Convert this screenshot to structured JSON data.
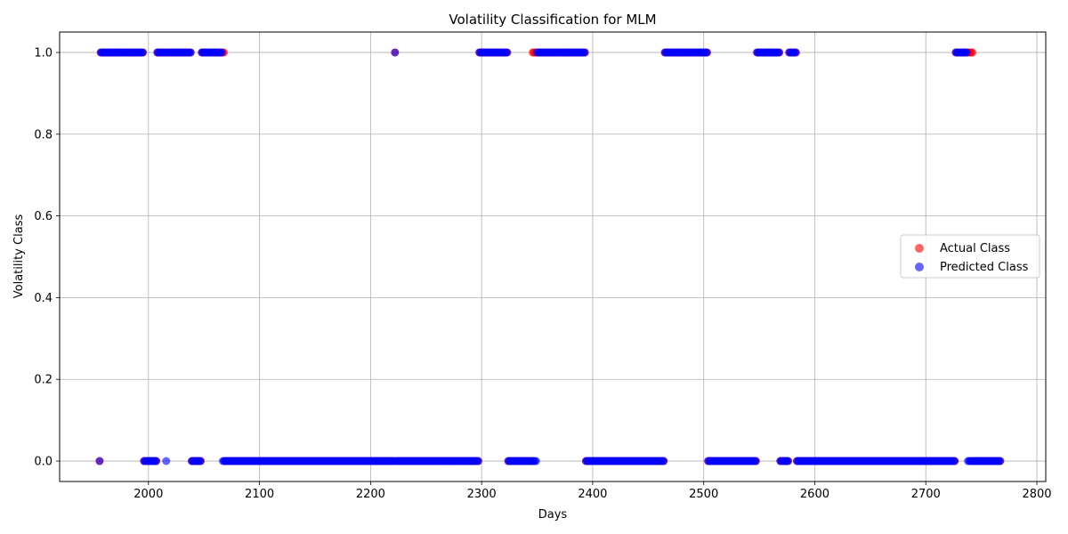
{
  "chart_data": {
    "type": "scatter",
    "title": "Volatility Classification for MLM",
    "xlabel": "Days",
    "ylabel": "Volatility Class",
    "xlim": [
      1920,
      2808
    ],
    "ylim": [
      -0.05,
      1.05
    ],
    "xticks": [
      2000,
      2100,
      2200,
      2300,
      2400,
      2500,
      2600,
      2700,
      2800
    ],
    "xtick_labels": [
      "2000",
      "2100",
      "2200",
      "2300",
      "2400",
      "2500",
      "2600",
      "2700",
      "2800"
    ],
    "yticks": [
      0.0,
      0.2,
      0.4,
      0.6,
      0.8,
      1.0
    ],
    "ytick_labels": [
      "0.0",
      "0.2",
      "0.4",
      "0.6",
      "0.8",
      "1.0"
    ],
    "grid": true,
    "legend_position": "center-right",
    "x_start": 1956,
    "x_end": 2767,
    "series": [
      {
        "name": "Actual Class",
        "color": "#ff0000",
        "alpha": 0.6,
        "high_ranges": [
          [
            1957,
            1995
          ],
          [
            2008,
            2038
          ],
          [
            2048,
            2068
          ],
          [
            2222,
            2222
          ],
          [
            2298,
            2323
          ],
          [
            2346,
            2393
          ],
          [
            2465,
            2503
          ],
          [
            2548,
            2568
          ],
          [
            2577,
            2583
          ],
          [
            2727,
            2742
          ]
        ]
      },
      {
        "name": "Predicted Class",
        "color": "#0000ff",
        "alpha": 0.6,
        "high_ranges": [
          [
            1957,
            1995
          ],
          [
            2008,
            2015
          ],
          [
            2017,
            2038
          ],
          [
            2048,
            2066
          ],
          [
            2222,
            2222
          ],
          [
            2298,
            2323
          ],
          [
            2350,
            2393
          ],
          [
            2465,
            2503
          ],
          [
            2548,
            2568
          ],
          [
            2577,
            2583
          ],
          [
            2727,
            2737
          ]
        ]
      }
    ]
  }
}
